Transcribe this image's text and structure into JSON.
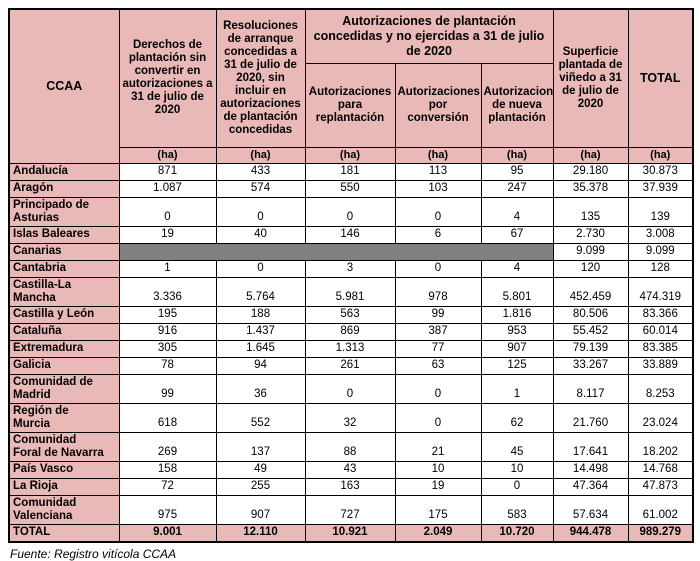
{
  "colors": {
    "header_bg": "#e9b9b8",
    "blocked_cell": "#808080",
    "border": "#000000"
  },
  "table": {
    "ccaa_header": "CCAA",
    "col_headers": {
      "derechos": "Derechos de plantación sin convertir en autorizaciones a 31 de julio de 2020",
      "resoluciones": "Resoluciones de arranque concedidas a 31 de julio de 2020, sin incluir en autorizaciones de plantación concedidas",
      "group": "Autorizaciones de plantación concedidas y no ejercidas a 31 de julio de 2020",
      "replantacion": "Autorizaciones para replantación",
      "conversion": "Autorizaciones por conversión",
      "nueva": "Autorizaciones de nueva plantación",
      "superficie": "Superficie plantada de viñedo a 31 de julio de 2020",
      "total": "TOTAL"
    },
    "unit": "(ha)",
    "rows": [
      {
        "name": "Andalucía",
        "values": [
          "871",
          "433",
          "181",
          "113",
          "95",
          "29.180",
          "30.873"
        ]
      },
      {
        "name": "Aragón",
        "values": [
          "1.087",
          "574",
          "550",
          "103",
          "247",
          "35.378",
          "37.939"
        ]
      },
      {
        "name": "Principado de Asturias",
        "values": [
          "0",
          "0",
          "0",
          "0",
          "4",
          "135",
          "139"
        ]
      },
      {
        "name": "Islas Baleares",
        "values": [
          "19",
          "40",
          "146",
          "6",
          "67",
          "2.730",
          "3.008"
        ]
      },
      {
        "name": "Canarias",
        "gray": true,
        "values": [
          "",
          "",
          "",
          "",
          "",
          "9.099",
          "9.099"
        ]
      },
      {
        "name": "Cantabria",
        "values": [
          "1",
          "0",
          "3",
          "0",
          "4",
          "120",
          "128"
        ]
      },
      {
        "name": "Castilla-La Mancha",
        "values": [
          "3.336",
          "5.764",
          "5.981",
          "978",
          "5.801",
          "452.459",
          "474.319"
        ]
      },
      {
        "name": "Castilla y León",
        "values": [
          "195",
          "188",
          "563",
          "99",
          "1.816",
          "80.506",
          "83.366"
        ]
      },
      {
        "name": "Cataluña",
        "values": [
          "916",
          "1.437",
          "869",
          "387",
          "953",
          "55.452",
          "60.014"
        ]
      },
      {
        "name": "Extremadura",
        "values": [
          "305",
          "1.645",
          "1.313",
          "77",
          "907",
          "79.139",
          "83.385"
        ]
      },
      {
        "name": "Galicia",
        "values": [
          "78",
          "94",
          "261",
          "63",
          "125",
          "33.267",
          "33.889"
        ]
      },
      {
        "name": "Comunidad de Madrid",
        "values": [
          "99",
          "36",
          "0",
          "0",
          "1",
          "8.117",
          "8.253"
        ]
      },
      {
        "name": "Región de Murcia",
        "values": [
          "618",
          "552",
          "32",
          "0",
          "62",
          "21.760",
          "23.024"
        ]
      },
      {
        "name": "Comunidad Foral de Navarra",
        "values": [
          "269",
          "137",
          "88",
          "21",
          "45",
          "17.641",
          "18.202"
        ]
      },
      {
        "name": "País Vasco",
        "values": [
          "158",
          "49",
          "43",
          "10",
          "10",
          "14.498",
          "14.768"
        ]
      },
      {
        "name": "La Rioja",
        "values": [
          "72",
          "255",
          "163",
          "19",
          "0",
          "47.364",
          "47.873"
        ]
      },
      {
        "name": "Comunidad Valenciana",
        "values": [
          "975",
          "907",
          "727",
          "175",
          "583",
          "57.634",
          "61.002"
        ]
      },
      {
        "name": "TOTAL",
        "total": true,
        "values": [
          "9.001",
          "12.110",
          "10.921",
          "2.049",
          "10.720",
          "944.478",
          "989.279"
        ]
      }
    ]
  },
  "footer": {
    "source": "Fuente: Registro vitícola CCAA"
  }
}
